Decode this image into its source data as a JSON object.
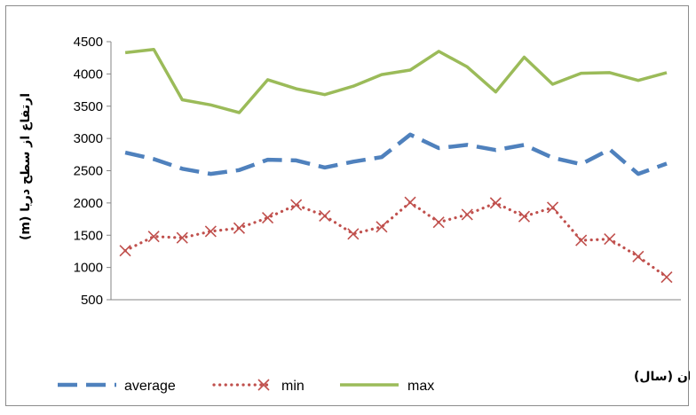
{
  "chart_data": {
    "type": "line",
    "ylabel": "ارتفاع از سطح دریا (m)",
    "xlabel": "زمان (سال)",
    "ylim": [
      500,
      4500
    ],
    "yticks": [
      "500",
      "1000",
      "1500",
      "2000",
      "2500",
      "3000",
      "3500",
      "4000",
      "4500"
    ],
    "grid": false,
    "legend_position": "bottom",
    "series": [
      {
        "name": "average",
        "color": "#4f81bd",
        "style": "dashed",
        "values": [
          2780,
          2680,
          2530,
          2450,
          2510,
          2670,
          2660,
          2550,
          2640,
          2710,
          3060,
          2850,
          2900,
          2820,
          2900,
          2700,
          2600,
          2830,
          2450,
          2610
        ]
      },
      {
        "name": "min",
        "color": "#c0504d",
        "style": "dotted-x",
        "values": [
          1260,
          1480,
          1460,
          1560,
          1610,
          1770,
          1970,
          1800,
          1520,
          1630,
          2010,
          1700,
          1820,
          2000,
          1790,
          1930,
          1420,
          1440,
          1170,
          850
        ]
      },
      {
        "name": "max",
        "color": "#9bbb59",
        "style": "solid",
        "values": [
          4330,
          4380,
          3600,
          3520,
          3400,
          3910,
          3770,
          3680,
          3810,
          3990,
          4060,
          4350,
          4110,
          3720,
          4260,
          3840,
          4010,
          4020,
          3900,
          4020
        ]
      }
    ]
  }
}
